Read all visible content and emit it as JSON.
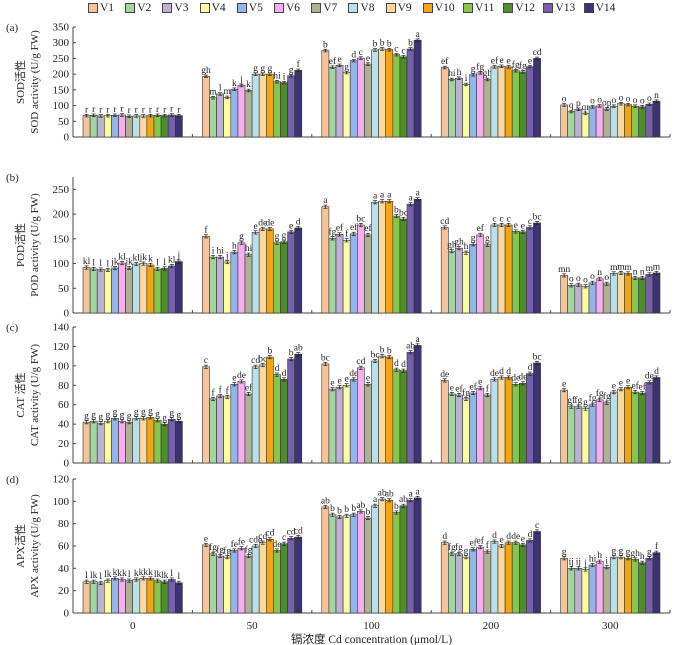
{
  "legend": [
    {
      "name": "V1",
      "color": "#f7c49a"
    },
    {
      "name": "V2",
      "color": "#a3d5a3"
    },
    {
      "name": "V3",
      "color": "#bdb2d6"
    },
    {
      "name": "V4",
      "color": "#fefca0"
    },
    {
      "name": "V5",
      "color": "#94b4ec"
    },
    {
      "name": "V6",
      "color": "#f6aef0"
    },
    {
      "name": "V7",
      "color": "#aeb293"
    },
    {
      "name": "V8",
      "color": "#b8e0e8"
    },
    {
      "name": "V9",
      "color": "#fcd9a0"
    },
    {
      "name": "V10",
      "color": "#f5a514"
    },
    {
      "name": "V11",
      "color": "#86c64c"
    },
    {
      "name": "V12",
      "color": "#4f8c2a"
    },
    {
      "name": "V13",
      "color": "#7460ad"
    },
    {
      "name": "V14",
      "color": "#3b3372"
    }
  ],
  "chart_data": [
    {
      "type": "bar",
      "panel_label": "(a)",
      "ylabel_cn": "SOD活性",
      "ylabel": "SOD activity (U/g FW)",
      "ylim": [
        0,
        350
      ],
      "yticks": [
        0,
        50,
        100,
        150,
        200,
        250,
        300,
        350
      ],
      "categories": [
        "0",
        "50",
        "100",
        "200",
        "300"
      ],
      "series_values": [
        [
          68,
          69,
          67,
          68,
          69,
          70,
          66,
          67,
          67,
          68,
          69,
          68,
          70,
          68
        ],
        [
          193,
          125,
          137,
          126,
          152,
          164,
          148,
          200,
          200,
          200,
          176,
          173,
          195,
          212
        ],
        [
          275,
          222,
          228,
          205,
          243,
          251,
          232,
          277,
          280,
          278,
          262,
          255,
          280,
          308
        ],
        [
          221,
          183,
          187,
          167,
          198,
          204,
          183,
          223,
          225,
          223,
          211,
          207,
          224,
          250
        ],
        [
          102,
          81,
          88,
          75,
          96,
          99,
          89,
          98,
          106,
          103,
          98,
          96,
          104,
          114
        ]
      ],
      "letters": [
        [
          "r",
          "r",
          "r",
          "r",
          "r",
          "r",
          "r",
          "r",
          "r",
          "r",
          "r",
          "r",
          "r",
          "r"
        ],
        [
          "gh",
          "m",
          "l",
          "m",
          "k",
          "j",
          "k",
          "g",
          "g",
          "g",
          "hi",
          "i",
          "g",
          "f"
        ],
        [
          "b",
          "ef",
          "e",
          "g",
          "d",
          "c",
          "e",
          "b",
          "b",
          "b",
          "c",
          "c",
          "b",
          "a"
        ],
        [
          "ef",
          "hi",
          "h",
          "i",
          "g",
          "fg",
          "gh",
          "ef",
          "e",
          "e",
          "fg",
          "fg",
          "e",
          "cd"
        ],
        [
          "o",
          "q",
          "p",
          "qr",
          "o",
          "o",
          "op",
          "o",
          "o",
          "o",
          "o",
          "o",
          "o",
          "n"
        ]
      ]
    },
    {
      "type": "bar",
      "panel_label": "(b)",
      "ylabel_cn": "POD活性",
      "ylabel": "POD activity (U/g FW)",
      "ylim": [
        0,
        275
      ],
      "yticks": [
        0,
        50,
        100,
        150,
        200,
        250
      ],
      "categories": [
        "0",
        "50",
        "100",
        "200",
        "300"
      ],
      "series_values": [
        [
          92,
          89,
          88,
          87,
          91,
          101,
          91,
          99,
          100,
          97,
          89,
          90,
          95,
          104
        ],
        [
          155,
          113,
          113,
          103,
          123,
          142,
          118,
          163,
          170,
          170,
          142,
          144,
          164,
          172
        ],
        [
          215,
          151,
          159,
          147,
          160,
          178,
          158,
          224,
          226,
          226,
          196,
          190,
          220,
          230
        ],
        [
          173,
          125,
          131,
          122,
          139,
          158,
          138,
          178,
          178,
          178,
          165,
          164,
          173,
          182
        ],
        [
          76,
          56,
          57,
          54,
          61,
          69,
          59,
          80,
          81,
          80,
          71,
          71,
          78,
          81
        ]
      ],
      "letters": [
        [
          "kl",
          "l",
          "l",
          "l",
          "jk",
          "kl",
          "jk",
          "kl",
          "jk",
          "k",
          "l",
          "l",
          "kl",
          "j"
        ],
        [
          "f",
          "i",
          "hi",
          "j",
          "h",
          "g",
          "hi",
          "e",
          "de",
          "de",
          "g",
          "g",
          "e",
          "d"
        ],
        [
          "a",
          "fg",
          "ef",
          "f",
          "ef",
          "bc",
          "ef",
          "a",
          "a",
          "a",
          "b",
          "bc",
          "a",
          "a"
        ],
        [
          "cd",
          "gh",
          "gh",
          "h",
          "g",
          "ef",
          "g",
          "c",
          "c",
          "c",
          "e",
          "e",
          "c",
          "bc"
        ],
        [
          "mn",
          "o",
          "o",
          "o",
          "o",
          "n",
          "o",
          "m",
          "m",
          "m",
          "n",
          "n",
          "m",
          "m"
        ]
      ]
    },
    {
      "type": "bar",
      "panel_label": "(c)",
      "ylabel_cn": "CAT 活性",
      "ylabel": "CAT activity (U/g FW)",
      "ylim": [
        0,
        140
      ],
      "yticks": [
        0,
        20,
        40,
        60,
        80,
        100,
        120,
        140
      ],
      "categories": [
        "0",
        "50",
        "100",
        "200",
        "300"
      ],
      "series_values": [
        [
          42,
          43,
          41,
          43,
          46,
          43,
          42,
          46,
          46,
          47,
          44,
          40,
          45,
          43
        ],
        [
          99,
          66,
          69,
          68,
          81,
          84,
          71,
          99,
          101,
          109,
          91,
          86,
          107,
          112
        ],
        [
          102,
          76,
          78,
          80,
          86,
          98,
          81,
          105,
          110,
          109,
          96,
          95,
          114,
          121
        ],
        [
          85,
          71,
          70,
          66,
          72,
          77,
          70,
          86,
          88,
          88,
          81,
          82,
          92,
          103
        ],
        [
          75,
          58,
          58,
          56,
          60,
          65,
          62,
          73,
          76,
          78,
          73,
          72,
          83,
          88
        ]
      ],
      "letters": [
        [
          "g",
          "g",
          "g",
          "g",
          "g",
          "g",
          "g",
          "g",
          "g",
          "g",
          "g",
          "g",
          "g",
          "g"
        ],
        [
          "c",
          "f",
          "f",
          "f",
          "e",
          "de",
          "ef",
          "cd",
          "bc",
          "b",
          "d",
          "d",
          "b",
          "ab"
        ],
        [
          "bc",
          "e",
          "e",
          "e",
          "de",
          "cd",
          "e",
          "bc",
          "b",
          "b",
          "d",
          "d",
          "ab",
          "a"
        ],
        [
          "de",
          "e",
          "ef",
          "fg",
          "ef",
          "e",
          "f",
          "de",
          "d",
          "d",
          "de",
          "de",
          "d",
          "bc"
        ],
        [
          "e",
          "gf",
          "fg",
          "g",
          "fg",
          "fg",
          "fg",
          "e",
          "e",
          "e",
          "ef",
          "ef",
          "de",
          "d"
        ]
      ]
    },
    {
      "type": "bar",
      "panel_label": "(d)",
      "ylabel_cn": "APX活性",
      "ylabel": "APX activity (U/g FW)",
      "ylim": [
        0,
        120
      ],
      "yticks": [
        0,
        20,
        40,
        60,
        80,
        100,
        120
      ],
      "categories": [
        "0",
        "50",
        "100",
        "200",
        "300"
      ],
      "xlabel": "镉浓度 Cd concentration (μmol/L)",
      "series_values": [
        [
          28,
          28,
          27,
          29,
          31,
          30,
          29,
          30,
          31,
          31,
          29,
          28,
          30,
          27
        ],
        [
          61,
          53,
          51,
          50,
          56,
          58,
          51,
          60,
          63,
          66,
          56,
          62,
          67,
          68
        ],
        [
          95,
          88,
          86,
          87,
          88,
          91,
          85,
          96,
          102,
          101,
          90,
          96,
          101,
          103
        ],
        [
          63,
          53,
          53,
          50,
          57,
          59,
          55,
          64,
          60,
          63,
          63,
          61,
          65,
          73
        ],
        [
          49,
          40,
          40,
          39,
          43,
          46,
          41,
          50,
          50,
          49,
          48,
          45,
          49,
          54
        ]
      ],
      "letters": [
        [
          "l",
          "lk",
          "l",
          "lk",
          "k",
          "kk",
          "l",
          "k",
          "kk",
          "k",
          "lk",
          "lk",
          "l",
          "l"
        ],
        [
          "e",
          "fg",
          "fg",
          "fg",
          "fe",
          "fe",
          "fg",
          "cde",
          "cd",
          "cd",
          "de",
          "c",
          "cd",
          "cd"
        ],
        [
          "ab",
          "b",
          "b",
          "b",
          "b",
          "ab",
          "b",
          "a",
          "ab",
          "ab",
          "b",
          "ab",
          "a",
          "a"
        ],
        [
          "d",
          "fg",
          "fg",
          "g",
          "ef",
          "ef",
          "f",
          "d",
          "e",
          "d",
          "de",
          "e",
          "d",
          "c"
        ],
        [
          "g",
          "ij",
          "ij",
          "j",
          "hi",
          "h",
          "i",
          "g",
          "g",
          "g",
          "gh",
          "h",
          "g",
          "f"
        ]
      ]
    }
  ]
}
